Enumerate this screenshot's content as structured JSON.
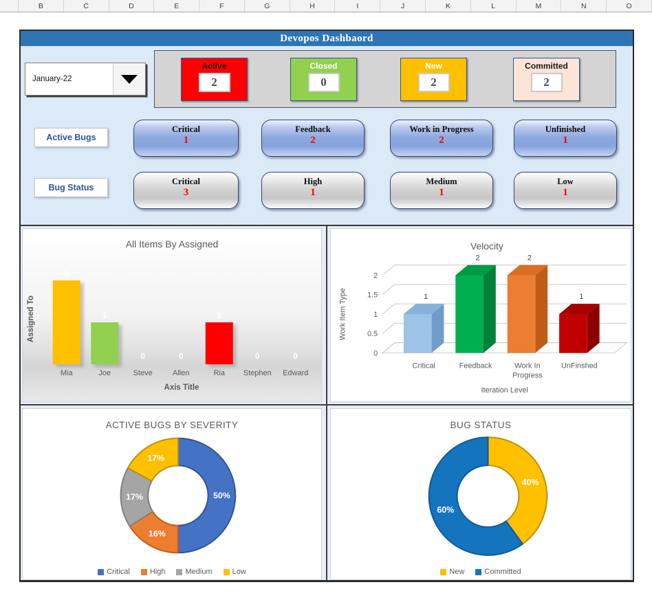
{
  "spreadsheet": {
    "column_headers": [
      "B",
      "C",
      "D",
      "E",
      "F",
      "G",
      "H",
      "I",
      "J",
      "K",
      "L",
      "M",
      "N",
      "O"
    ]
  },
  "dashboard": {
    "title": "Devopos Dashbaord",
    "month_selector": {
      "value": "January-22"
    },
    "kpis": [
      {
        "label": "Active",
        "value": "2",
        "bg": "#FF0000",
        "label_color": "#1a1a1a"
      },
      {
        "label": "Closed",
        "value": "0",
        "bg": "#92D050",
        "label_color": "#ffffff"
      },
      {
        "label": "New",
        "value": "2",
        "bg": "#FFC000",
        "label_color": "#ffffff"
      },
      {
        "label": "Committed",
        "value": "2",
        "bg": "#FCE4D6",
        "label_color": "#1a1a1a"
      }
    ],
    "active_bugs": {
      "label": "Active Bugs",
      "style": "blue",
      "buttons": [
        {
          "label": "Critical",
          "value": "1"
        },
        {
          "label": "Feedback",
          "value": "2"
        },
        {
          "label": "Work in Progress",
          "value": "2"
        },
        {
          "label": "Unfinished",
          "value": "1"
        }
      ]
    },
    "bug_status": {
      "label": "Bug Status",
      "style": "gray",
      "buttons": [
        {
          "label": "Critical",
          "value": "3"
        },
        {
          "label": "High",
          "value": "1"
        },
        {
          "label": "Medium",
          "value": "1"
        },
        {
          "label": "Low",
          "value": "1"
        }
      ]
    }
  },
  "colors": {
    "title_bar": "#2E75B6",
    "upper_bg": "#DCE9F6",
    "kpi_panel_bg": "#D4D4D4",
    "accent_red_number": "#FF0000",
    "chart_text": "#595959"
  },
  "chart_data": [
    {
      "type": "bar",
      "id": "assigned",
      "title": "All Items By Assigned",
      "xlabel": "Axis Title",
      "ylabel": "Assigned To",
      "categories": [
        "Mia",
        "Joe",
        "Steve",
        "Allen",
        "Ria",
        "Stephen",
        "Edward"
      ],
      "values": [
        2,
        1,
        0,
        0,
        1,
        0,
        0
      ],
      "point_colors": [
        "#FFC000",
        "#92D050",
        "#A5A5A5",
        "#A5A5A5",
        "#FF0000",
        "#A5A5A5",
        "#A5A5A5"
      ],
      "ylim": [
        0,
        2
      ],
      "data_labels": true,
      "grid": false,
      "background": "gradient-gray"
    },
    {
      "type": "bar",
      "id": "velocity",
      "variant": "3d",
      "title": "Velocity",
      "xlabel": "Iteration Level",
      "ylabel": "Work Item Type",
      "categories": [
        "Critical",
        "Feedback",
        "Work In Progress",
        "UnFinshed"
      ],
      "values": [
        1,
        2,
        2,
        1
      ],
      "yticks": [
        0,
        0.5,
        1,
        1.5,
        2
      ],
      "ylim": [
        0,
        2
      ],
      "data_labels": true,
      "grid": true,
      "point_colors": [
        {
          "front": "#9DC3E6",
          "side": "#6f9ccc",
          "top": "#86b1db"
        },
        {
          "front": "#00B050",
          "side": "#00813a",
          "top": "#009a45"
        },
        {
          "front": "#ED7D31",
          "side": "#bf5d17",
          "top": "#d96e24"
        },
        {
          "front": "#C00000",
          "side": "#8e0000",
          "top": "#a60000"
        }
      ]
    },
    {
      "type": "pie",
      "id": "severity",
      "subtype": "donut",
      "title": "ACTIVE BUGS BY SEVERITY",
      "labels": [
        "Critical",
        "High",
        "Medium",
        "Low"
      ],
      "values": [
        50,
        16,
        17,
        17
      ],
      "slice_labels": [
        "50%",
        "16%",
        "17%",
        "17%"
      ],
      "colors": [
        "#4472C4",
        "#ED7D31",
        "#A5A5A5",
        "#FFC000"
      ],
      "stroke_colors": [
        "#2f5597",
        "#c55b11",
        "#7f7f7f",
        "#bf9000"
      ],
      "legend_position": "bottom"
    },
    {
      "type": "pie",
      "id": "bugstatus",
      "subtype": "donut",
      "title": "BUG STATUS",
      "labels": [
        "New",
        "Committed"
      ],
      "values": [
        40,
        60
      ],
      "slice_labels": [
        "40%",
        "60%"
      ],
      "colors": [
        "#FFC000",
        "#1474BE"
      ],
      "stroke_colors": [
        "#bf9000",
        "#0f5a94"
      ],
      "legend_position": "bottom"
    }
  ]
}
